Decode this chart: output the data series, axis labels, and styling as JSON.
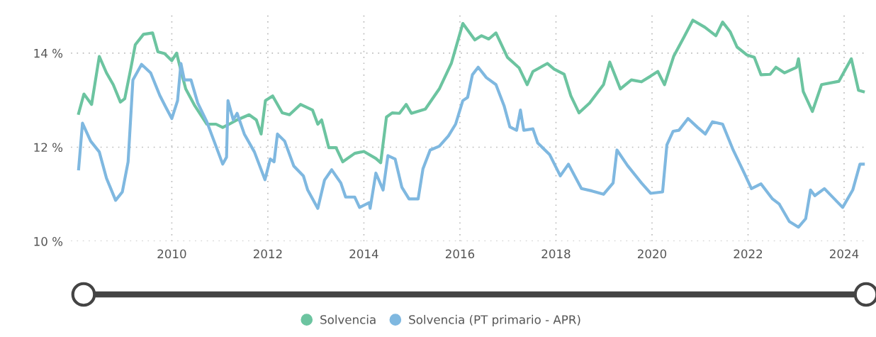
{
  "chart_data": {
    "type": "line",
    "xlim": [
      2007.9,
      2024.5
    ],
    "xticks": [
      2010,
      2012,
      2014,
      2016,
      2018,
      2020,
      2022,
      2024
    ],
    "ylim": [
      10,
      14.9
    ],
    "yticks": [
      {
        "value": 10,
        "label": "10 %"
      },
      {
        "value": 12,
        "label": "12 %"
      },
      {
        "value": 14,
        "label": "14 %"
      }
    ],
    "grid": true,
    "legend": "bottom",
    "marker": "none",
    "line_style": "solid",
    "series": [
      {
        "name": "Solvencia",
        "color": "#6cc4a0",
        "x": [
          2008.06,
          2008.17,
          2008.33,
          2008.49,
          2008.64,
          2008.78,
          2008.93,
          2009.02,
          2009.15,
          2009.24,
          2009.41,
          2009.6,
          2009.71,
          2009.85,
          2010.0,
          2010.1,
          2010.19,
          2010.29,
          2010.48,
          2010.73,
          2010.92,
          2011.06,
          2011.14,
          2011.36,
          2011.61,
          2011.76,
          2011.86,
          2011.95,
          2012.1,
          2012.3,
          2012.45,
          2012.68,
          2012.93,
          2013.04,
          2013.12,
          2013.27,
          2013.42,
          2013.56,
          2013.81,
          2014.0,
          2014.25,
          2014.35,
          2014.47,
          2014.59,
          2014.74,
          2014.88,
          2014.99,
          2015.28,
          2015.57,
          2015.82,
          2016.06,
          2016.31,
          2016.45,
          2016.6,
          2016.75,
          2016.99,
          2017.23,
          2017.4,
          2017.52,
          2017.82,
          2017.96,
          2018.17,
          2018.31,
          2018.48,
          2018.7,
          2018.99,
          2019.12,
          2019.34,
          2019.57,
          2019.78,
          2019.97,
          2020.12,
          2020.26,
          2020.45,
          2020.66,
          2020.85,
          2021.1,
          2021.33,
          2021.47,
          2021.63,
          2021.77,
          2021.98,
          2022.13,
          2022.27,
          2022.46,
          2022.58,
          2022.76,
          2023.01,
          2023.05,
          2023.15,
          2023.34,
          2023.53,
          2023.89,
          2024.15,
          2024.3,
          2024.4
        ],
        "values": [
          12.72,
          13.13,
          12.91,
          13.93,
          13.58,
          13.33,
          12.96,
          13.03,
          13.69,
          14.18,
          14.4,
          14.43,
          14.03,
          13.99,
          13.84,
          14.0,
          13.63,
          13.24,
          12.88,
          12.49,
          12.49,
          12.42,
          12.46,
          12.58,
          12.69,
          12.58,
          12.28,
          12.99,
          13.09,
          12.73,
          12.69,
          12.91,
          12.79,
          12.49,
          12.58,
          11.99,
          11.99,
          11.69,
          11.87,
          11.91,
          11.76,
          11.67,
          12.64,
          12.73,
          12.72,
          12.91,
          12.72,
          12.81,
          13.24,
          13.78,
          14.63,
          14.28,
          14.37,
          14.3,
          14.43,
          13.91,
          13.69,
          13.33,
          13.61,
          13.78,
          13.66,
          13.55,
          13.09,
          12.73,
          12.94,
          13.33,
          13.81,
          13.24,
          13.43,
          13.39,
          13.51,
          13.61,
          13.33,
          13.93,
          14.33,
          14.7,
          14.55,
          14.37,
          14.66,
          14.45,
          14.13,
          13.96,
          13.91,
          13.54,
          13.55,
          13.7,
          13.58,
          13.7,
          13.88,
          13.18,
          12.76,
          13.33,
          13.4,
          13.88,
          13.21,
          13.18
        ]
      },
      {
        "name": "Solvencia (PT primario - APR)",
        "color": "#7fb8e0",
        "x": [
          2008.06,
          2008.14,
          2008.31,
          2008.49,
          2008.64,
          2008.83,
          2008.97,
          2009.09,
          2009.19,
          2009.37,
          2009.56,
          2009.75,
          2009.88,
          2010.0,
          2010.12,
          2010.19,
          2010.26,
          2010.4,
          2010.54,
          2010.73,
          2010.88,
          2011.06,
          2011.14,
          2011.17,
          2011.28,
          2011.36,
          2011.51,
          2011.72,
          2011.94,
          2012.05,
          2012.13,
          2012.2,
          2012.35,
          2012.54,
          2012.74,
          2012.83,
          2013.04,
          2013.18,
          2013.33,
          2013.52,
          2013.62,
          2013.81,
          2013.91,
          2014.11,
          2014.13,
          2014.25,
          2014.4,
          2014.5,
          2014.65,
          2014.79,
          2014.94,
          2015.13,
          2015.23,
          2015.38,
          2015.57,
          2015.76,
          2015.91,
          2016.06,
          2016.16,
          2016.26,
          2016.38,
          2016.55,
          2016.75,
          2016.92,
          2017.04,
          2017.18,
          2017.26,
          2017.33,
          2017.52,
          2017.62,
          2017.87,
          2018.09,
          2018.26,
          2018.53,
          2018.75,
          2018.99,
          2019.19,
          2019.27,
          2019.49,
          2019.78,
          2019.97,
          2020.22,
          2020.31,
          2020.44,
          2020.56,
          2020.75,
          2020.95,
          2021.11,
          2021.26,
          2021.47,
          2021.69,
          2021.92,
          2022.07,
          2022.27,
          2022.51,
          2022.65,
          2022.86,
          2023.05,
          2023.2,
          2023.3,
          2023.39,
          2023.59,
          2023.97,
          2024.18,
          2024.33,
          2024.4
        ],
        "values": [
          11.54,
          12.51,
          12.13,
          11.9,
          11.34,
          10.87,
          11.05,
          11.69,
          13.43,
          13.76,
          13.58,
          13.1,
          12.84,
          12.61,
          12.99,
          13.78,
          13.43,
          13.43,
          12.94,
          12.54,
          12.13,
          11.64,
          11.79,
          12.99,
          12.58,
          12.72,
          12.28,
          11.9,
          11.31,
          11.75,
          11.69,
          12.28,
          12.13,
          11.6,
          11.39,
          11.09,
          10.7,
          11.3,
          11.52,
          11.24,
          10.94,
          10.94,
          10.72,
          10.82,
          10.7,
          11.45,
          11.09,
          11.82,
          11.75,
          11.15,
          10.9,
          10.9,
          11.54,
          11.94,
          12.02,
          12.24,
          12.49,
          12.99,
          13.06,
          13.54,
          13.7,
          13.48,
          13.33,
          12.88,
          12.43,
          12.36,
          12.79,
          12.36,
          12.39,
          12.09,
          11.84,
          11.39,
          11.64,
          11.12,
          11.07,
          11.0,
          11.24,
          11.94,
          11.61,
          11.24,
          11.02,
          11.05,
          12.05,
          12.34,
          12.36,
          12.61,
          12.42,
          12.28,
          12.54,
          12.49,
          11.94,
          11.45,
          11.12,
          11.22,
          10.9,
          10.79,
          10.42,
          10.3,
          10.48,
          11.09,
          10.97,
          11.12,
          10.72,
          11.09,
          11.64,
          11.64
        ]
      }
    ]
  }
}
